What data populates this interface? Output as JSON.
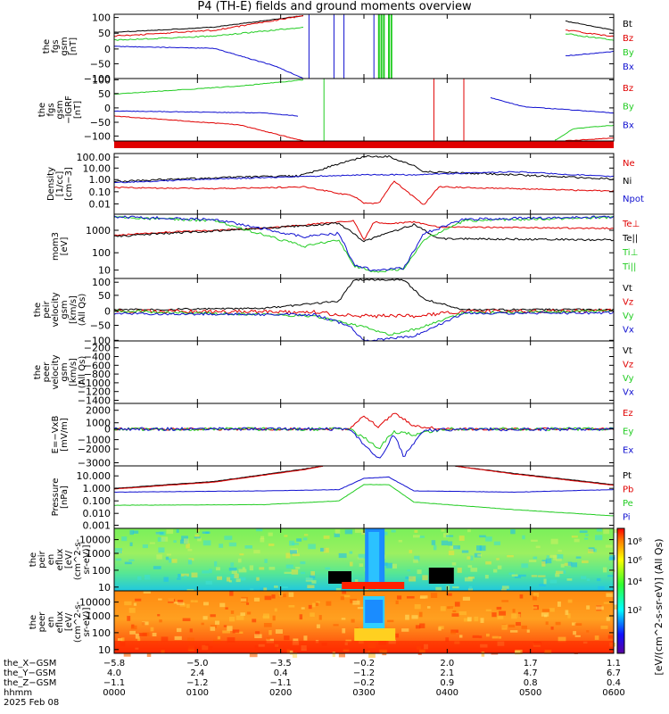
{
  "title": "P4 (TH-E) fields and ground moments overview",
  "colors": {
    "black": "#000000",
    "red": "#e00000",
    "green": "#22cc22",
    "blue": "#1010d0"
  },
  "panels": [
    {
      "id": "fgs-gsm",
      "ylabel": [
        "the",
        "fgs",
        "gsm",
        "[nT]"
      ],
      "ticks": [
        "100",
        "50",
        "0",
        "−50",
        "−100"
      ],
      "legend": [
        {
          "text": "Bt",
          "color": "black"
        },
        {
          "text": "Bz",
          "color": "red"
        },
        {
          "text": "By",
          "color": "green"
        },
        {
          "text": "Bx",
          "color": "blue"
        }
      ]
    },
    {
      "id": "fgs-gsm-minus",
      "ylabel": [
        "the",
        "fgs",
        "gsm",
        "−IGRF",
        "[nT]"
      ],
      "ticks": [
        "100",
        "50",
        "0",
        "−50",
        "−100"
      ],
      "legend": [
        {
          "text": "Bz",
          "color": "red"
        },
        {
          "text": "By",
          "color": "green"
        },
        {
          "text": "Bx",
          "color": "blue"
        }
      ]
    },
    {
      "id": "density",
      "ylabel": [
        "Density",
        "[1/cc]",
        "[cm−3]"
      ],
      "ticks": [
        "100.00",
        "10.00",
        "1.00",
        "0.10",
        "0.01"
      ],
      "legend": [
        {
          "text": "Ne",
          "color": "red"
        },
        {
          "text": "Ni",
          "color": "black"
        },
        {
          "text": "Npot",
          "color": "blue"
        }
      ]
    },
    {
      "id": "temperature",
      "ylabel": [
        "mom3",
        "[eV]"
      ],
      "ticks": [
        "1000",
        "100",
        "10"
      ],
      "legend": [
        {
          "text": "Te⊥",
          "color": "red"
        },
        {
          "text": "Te||",
          "color": "black"
        },
        {
          "text": "Ti⊥",
          "color": "green"
        },
        {
          "text": "Ti||",
          "color": "green"
        }
      ]
    },
    {
      "id": "peir-velocity",
      "ylabel": [
        "the",
        "peir",
        "velocity",
        "gsm",
        "[km/s]",
        "(All Qs)"
      ],
      "ticks": [
        "100",
        "50",
        "0",
        "−50",
        "−100"
      ],
      "legend": [
        {
          "text": "Vt",
          "color": "black"
        },
        {
          "text": "Vz",
          "color": "red"
        },
        {
          "text": "Vy",
          "color": "green"
        },
        {
          "text": "Vx",
          "color": "blue"
        }
      ]
    },
    {
      "id": "peer-velocity",
      "ylabel": [
        "the",
        "peer",
        "velocity",
        "gsm",
        "[km/s]",
        "(All Qs)"
      ],
      "ticks": [
        "−200",
        "−400",
        "−600",
        "−800",
        "−1000",
        "−1200",
        "−1400"
      ],
      "legend": [
        {
          "text": "Vt",
          "color": "black"
        },
        {
          "text": "Vz",
          "color": "red"
        },
        {
          "text": "Vy",
          "color": "green"
        },
        {
          "text": "Vx",
          "color": "blue"
        }
      ]
    },
    {
      "id": "efield",
      "ylabel": [
        "E=−VxB",
        "[mV/m]"
      ],
      "ticks": [
        "2000",
        "1000",
        "0",
        "−1000",
        "−2000",
        "−3000"
      ],
      "legend": [
        {
          "text": "Ez",
          "color": "red"
        },
        {
          "text": "Ey",
          "color": "green"
        },
        {
          "text": "Ex",
          "color": "blue"
        }
      ]
    },
    {
      "id": "pressure",
      "ylabel": [
        "Pressure",
        "[nPa]"
      ],
      "ticks": [
        "10.000",
        "1.000",
        "0.100",
        "0.010",
        "0.001"
      ],
      "legend": [
        {
          "text": "Pt",
          "color": "black"
        },
        {
          "text": "Pb",
          "color": "red"
        },
        {
          "text": "Pe",
          "color": "green"
        },
        {
          "text": "Pi",
          "color": "blue"
        }
      ]
    },
    {
      "id": "peir-eflux",
      "ylabel": [
        "the",
        "peir",
        "en",
        "eflux",
        "[eV/",
        "(cm^2-s-",
        "sr-eV)]"
      ],
      "ticks": [
        "10000",
        "1000",
        "100",
        "10"
      ],
      "legend": []
    },
    {
      "id": "peer-eflux",
      "ylabel": [
        "the",
        "peer",
        "en",
        "eflux",
        "[eV/",
        "(cm^2-s-",
        "sr-eV)]"
      ],
      "ticks": [
        "10000",
        "1000",
        "100",
        "10"
      ],
      "legend": []
    }
  ],
  "colorbar": {
    "ticks": [
      "10⁸",
      "10⁶",
      "10⁴",
      "10²"
    ],
    "label": "[eV/(cm^2-s-sr-eV)] (All Qs)"
  },
  "xaxis": {
    "row_labels": [
      "the_X−GSM",
      "the_Y−GSM",
      "the_Z−GSM",
      "hhmm",
      "2025 Feb 08"
    ],
    "columns": [
      {
        "x": "−5.8",
        "y": "4.0",
        "z": "−1.1",
        "t": "0000"
      },
      {
        "x": "−5.0",
        "y": "2.4",
        "z": "−1.2",
        "t": "0100"
      },
      {
        "x": "−3.5",
        "y": "0.4",
        "z": "−1.1",
        "t": "0200"
      },
      {
        "x": "−0.2",
        "y": "−1.2",
        "z": "−0.2",
        "t": "0300"
      },
      {
        "x": "2.0",
        "y": "2.1",
        "z": "0.9",
        "t": "0400"
      },
      {
        "x": "1.7",
        "y": "4.7",
        "z": "0.8",
        "t": "0500"
      },
      {
        "x": "1.1",
        "y": "6.7",
        "z": "0.4",
        "t": "0600"
      }
    ]
  },
  "chart_data": {
    "type": "line",
    "title": "P4 (TH-E) fields and ground moments overview",
    "x_time_hhmm": [
      "0000",
      "0100",
      "0200",
      "0300",
      "0400",
      "0500",
      "0600"
    ],
    "date": "2025 Feb 08",
    "ephemeris": {
      "X_GSM": [
        -5.8,
        -5.0,
        -3.5,
        -0.2,
        2.0,
        1.7,
        1.1
      ],
      "Y_GSM": [
        4.0,
        2.4,
        0.4,
        -1.2,
        2.1,
        4.7,
        6.7
      ],
      "Z_GSM": [
        -1.1,
        -1.2,
        -1.1,
        -0.2,
        0.9,
        0.8,
        0.4
      ]
    },
    "panels": [
      {
        "name": "the fgs gsm [nT]",
        "ylim": [
          -100,
          100
        ],
        "series": [
          {
            "name": "Bt",
            "values": [
              35,
              55,
              100,
              null,
              null,
              null,
              70
            ]
          },
          {
            "name": "Bz",
            "values": [
              30,
              50,
              100,
              null,
              null,
              null,
              40
            ]
          },
          {
            "name": "By",
            "values": [
              15,
              25,
              60,
              null,
              null,
              null,
              30
            ]
          },
          {
            "name": "Bx",
            "values": [
              0,
              -20,
              -100,
              null,
              null,
              null,
              -20
            ]
          }
        ]
      },
      {
        "name": "the fgs gsm −IGRF [nT]",
        "ylim": [
          -120,
          100
        ],
        "series": [
          {
            "name": "Bz",
            "values": [
              -30,
              -60,
              -120,
              null,
              null,
              null,
              -100
            ]
          },
          {
            "name": "By",
            "values": [
              55,
              75,
              100,
              null,
              null,
              null,
              -80
            ]
          },
          {
            "name": "Bx",
            "values": [
              0,
              0,
              -20,
              null,
              null,
              -20,
              -20
            ]
          }
        ]
      },
      {
        "name": "Density [1/cc]",
        "scale": "log",
        "ylim": [
          0.01,
          100
        ],
        "series": [
          {
            "name": "Ni",
            "values": [
              0.5,
              0.8,
              1.0,
              50,
              3.0,
              1.0,
              1.0
            ]
          },
          {
            "name": "Ne",
            "values": [
              0.3,
              0.2,
              0.2,
              0.01,
              0.2,
              0.1,
              0.1
            ]
          },
          {
            "name": "Npot",
            "values": [
              0.4,
              0.5,
              0.8,
              1.0,
              1.0,
              0.5,
              0.6
            ]
          }
        ]
      },
      {
        "name": "mom3 [eV]",
        "scale": "log",
        "ylim": [
          5,
          3000
        ],
        "series": [
          {
            "name": "Te⊥",
            "values": [
              500,
              1000,
              1000,
              1500,
              1500,
              1000,
              1000
            ]
          },
          {
            "name": "Te||",
            "values": [
              500,
              900,
              900,
              1000,
              700,
              400,
              400
            ]
          },
          {
            "name": "Ti⊥",
            "values": [
              2000,
              1500,
              200,
              10,
              1000,
              1500,
              1500
            ]
          },
          {
            "name": "Ti||",
            "values": [
              1500,
              1200,
              200,
              10,
              800,
              1200,
              1000
            ]
          }
        ]
      },
      {
        "name": "the peir velocity gsm [km/s] (All Qs)",
        "ylim": [
          -100,
          100
        ],
        "series": [
          {
            "name": "Vt",
            "values": [
              10,
              15,
              30,
              110,
              40,
              10,
              10
            ]
          },
          {
            "name": "Vz",
            "values": [
              0,
              5,
              10,
              -10,
              -5,
              0,
              0
            ]
          },
          {
            "name": "Vy",
            "values": [
              0,
              0,
              -10,
              -60,
              -20,
              0,
              0
            ]
          },
          {
            "name": "Vx",
            "values": [
              0,
              -5,
              -20,
              -100,
              -60,
              0,
              0
            ]
          }
        ]
      },
      {
        "name": "the peer velocity gsm [km/s] (All Qs)",
        "ylim": [
          -1400,
          -200
        ],
        "series": []
      },
      {
        "name": "E=−VxB [mV/m]",
        "ylim": [
          -3000,
          2000
        ],
        "series": [
          {
            "name": "Ez",
            "values": [
              0,
              0,
              0,
              1300,
              100,
              0,
              0
            ]
          },
          {
            "name": "Ey",
            "values": [
              0,
              0,
              0,
              -1900,
              -200,
              0,
              0
            ]
          },
          {
            "name": "Ex",
            "values": [
              0,
              0,
              0,
              -2900,
              -2000,
              0,
              0
            ]
          }
        ]
      },
      {
        "name": "Pressure [nPa]",
        "scale": "log",
        "ylim": [
          0.0005,
          10
        ],
        "series": [
          {
            "name": "Pt",
            "values": [
              0.7,
              2.0,
              8.0,
              3.0,
              5.0,
              2.0,
              1.0
            ]
          },
          {
            "name": "Pb",
            "values": [
              0.6,
              2.0,
              8.0,
              null,
              5.0,
              2.0,
              1.0
            ]
          },
          {
            "name": "Pe",
            "values": [
              0.05,
              0.04,
              0.05,
              0.1,
              0.03,
              0.01,
              0.008
            ]
          },
          {
            "name": "Pi",
            "values": [
              0.2,
              0.3,
              0.4,
              3.0,
              0.3,
              0.3,
              0.3
            ]
          }
        ]
      },
      {
        "name": "the peir en eflux",
        "type": "heatmap",
        "ylim": [
          10,
          20000
        ],
        "scale": "log"
      },
      {
        "name": "the peer en eflux",
        "type": "heatmap",
        "ylim": [
          10,
          20000
        ],
        "scale": "log"
      }
    ]
  }
}
